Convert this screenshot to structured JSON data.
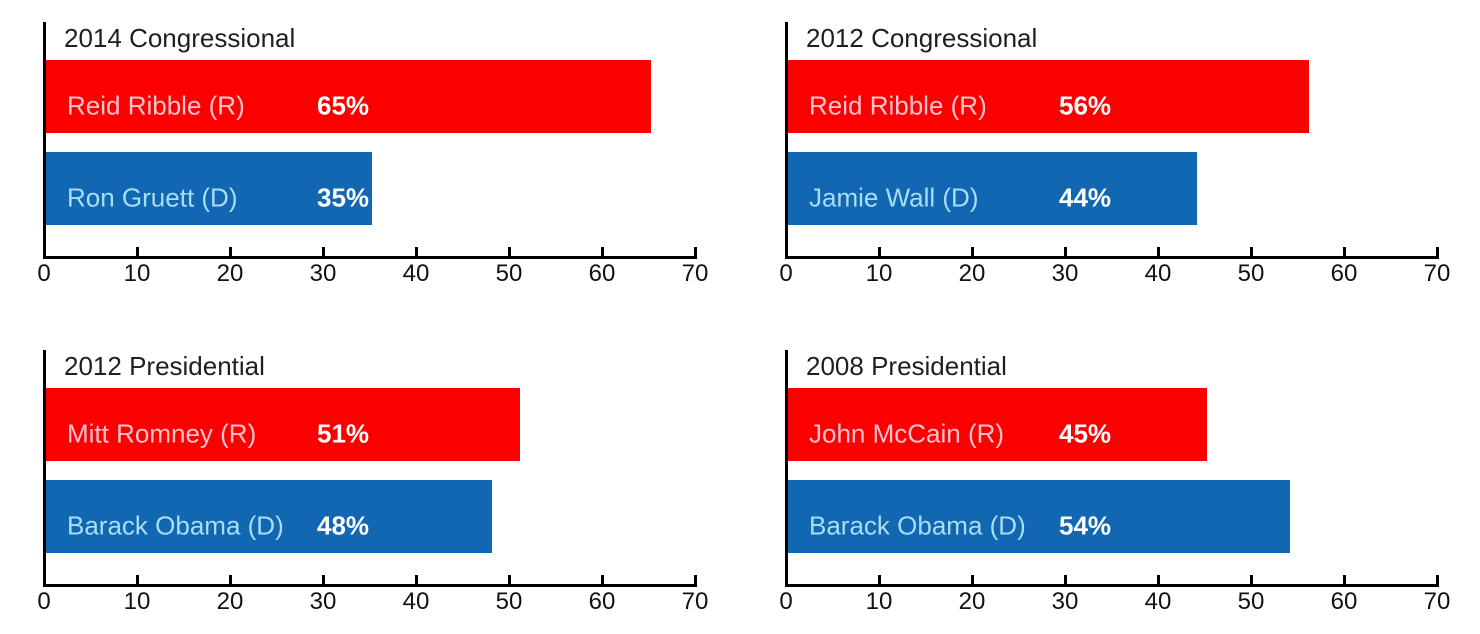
{
  "figure": {
    "description": "Four horizontal bar charts comparing Republican and Democratic vote shares"
  },
  "style": {
    "colors": {
      "republican_bar": "#fc0000",
      "democrat_bar": "#1167b1",
      "republican_name_text": "#ffc3ce",
      "democrat_name_text": "#a9ddf3",
      "value_text": "#ffffff",
      "title_text": "#1f1f1f",
      "axis": "#000000",
      "tick_label_text": "#111111",
      "background": "#ffffff"
    }
  },
  "chart_data": [
    {
      "type": "bar",
      "orientation": "horizontal",
      "title": "2014 Congressional",
      "xlim": [
        0,
        70
      ],
      "x_ticks": [
        "0",
        "10",
        "20",
        "30",
        "40",
        "50",
        "60",
        "70"
      ],
      "grid": "off",
      "bars": [
        {
          "name": "Reid Ribble (R)",
          "party": "republican",
          "value": 65,
          "value_label": "65%"
        },
        {
          "name": "Ron Gruett (D)",
          "party": "democrat",
          "value": 35,
          "value_label": "35%"
        }
      ]
    },
    {
      "type": "bar",
      "orientation": "horizontal",
      "title": "2012 Congressional",
      "xlim": [
        0,
        70
      ],
      "x_ticks": [
        "0",
        "10",
        "20",
        "30",
        "40",
        "50",
        "60",
        "70"
      ],
      "grid": "off",
      "bars": [
        {
          "name": "Reid Ribble (R)",
          "party": "republican",
          "value": 56,
          "value_label": "56%"
        },
        {
          "name": "Jamie Wall (D)",
          "party": "democrat",
          "value": 44,
          "value_label": "44%"
        }
      ]
    },
    {
      "type": "bar",
      "orientation": "horizontal",
      "title": "2012 Presidential",
      "xlim": [
        0,
        70
      ],
      "x_ticks": [
        "0",
        "10",
        "20",
        "30",
        "40",
        "50",
        "60",
        "70"
      ],
      "grid": "off",
      "bars": [
        {
          "name": "Mitt Romney (R)",
          "party": "republican",
          "value": 51,
          "value_label": "51%"
        },
        {
          "name": "Barack Obama (D)",
          "party": "democrat",
          "value": 48,
          "value_label": "48%"
        }
      ]
    },
    {
      "type": "bar",
      "orientation": "horizontal",
      "title": "2008 Presidential",
      "xlim": [
        0,
        70
      ],
      "x_ticks": [
        "0",
        "10",
        "20",
        "30",
        "40",
        "50",
        "60",
        "70"
      ],
      "grid": "off",
      "bars": [
        {
          "name": "John McCain (R)",
          "party": "republican",
          "value": 45,
          "value_label": "45%"
        },
        {
          "name": "Barack Obama (D)",
          "party": "democrat",
          "value": 54,
          "value_label": "54%"
        }
      ]
    }
  ]
}
